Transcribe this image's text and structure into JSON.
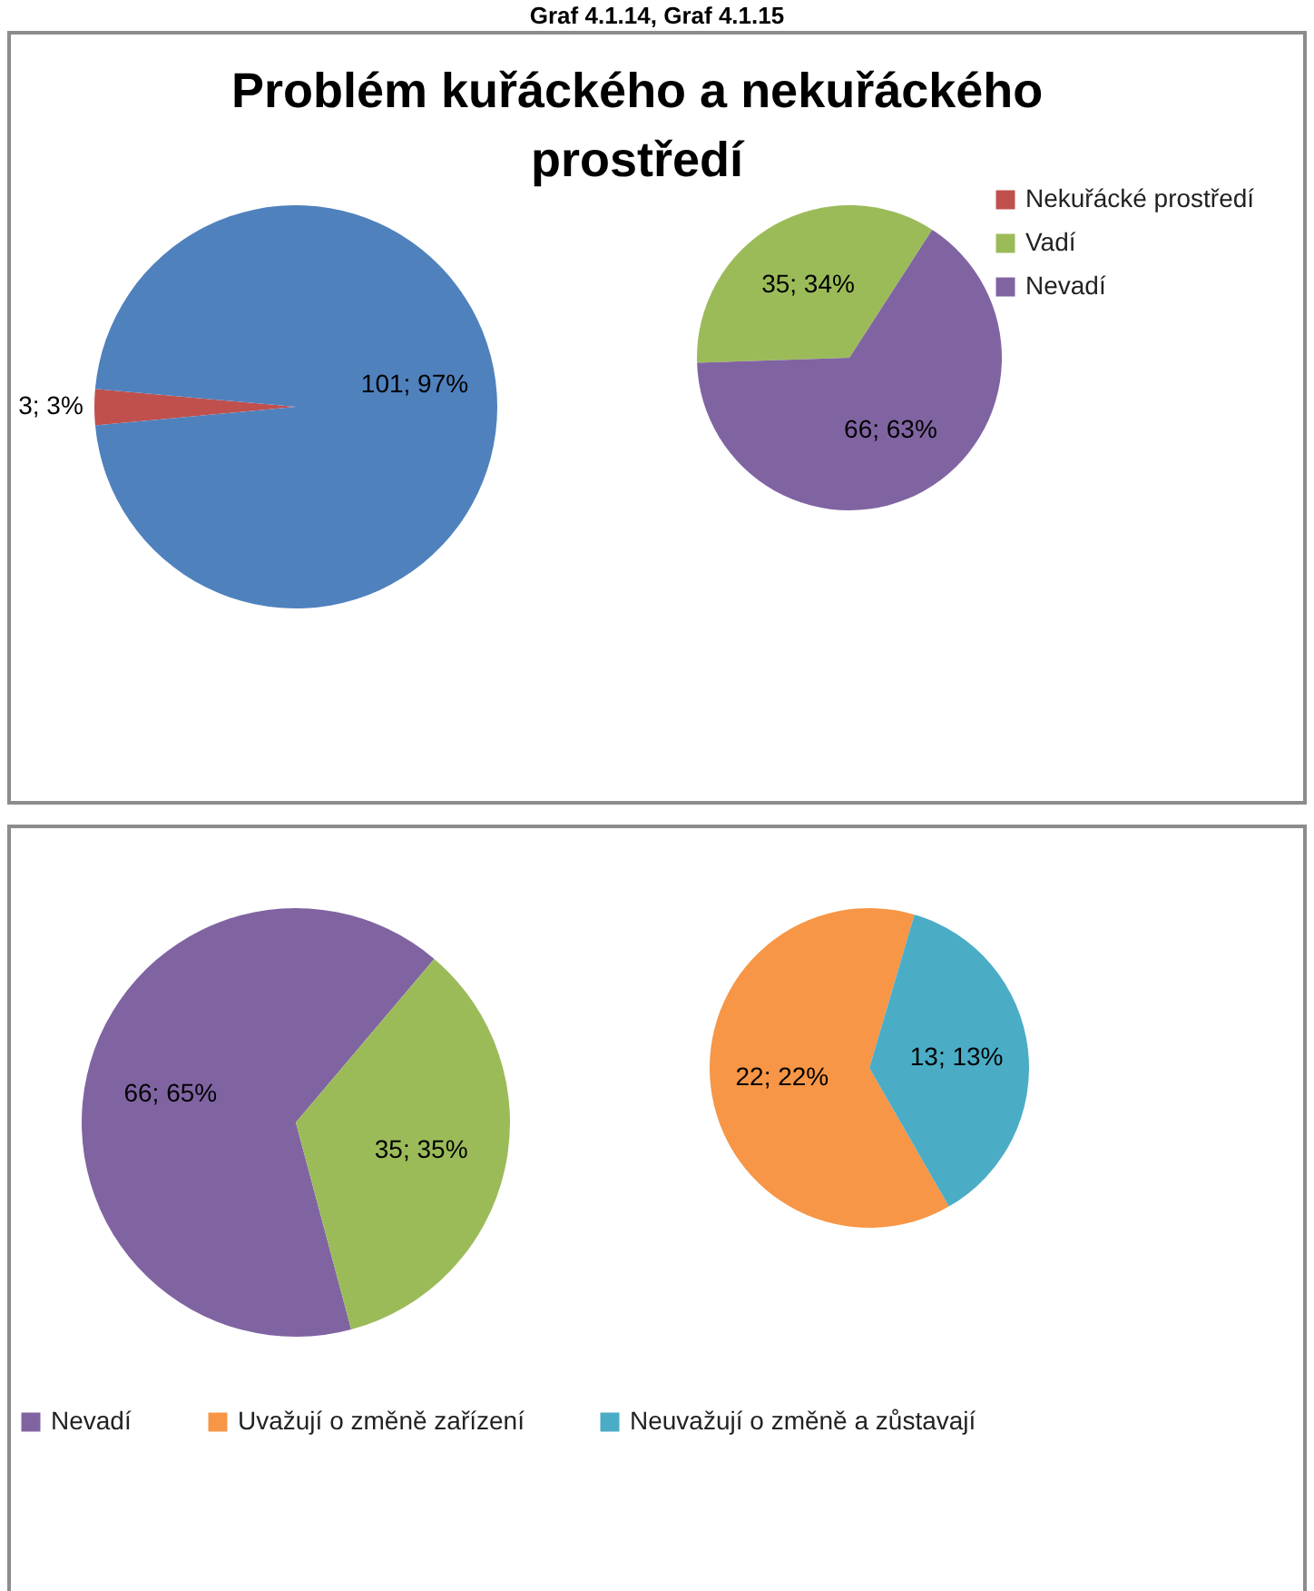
{
  "chart_data": [
    {
      "type": "pie",
      "title": "Problém kuřáckého a nekuřáckého prostředí",
      "annotations": [
        "Graf 4.1.14, Graf 4.1.15"
      ],
      "categories": [
        "Nekuřácké prostředí",
        null
      ],
      "values": [
        3,
        101
      ],
      "colors": [
        "#c0504d",
        "#4f81bd"
      ],
      "value_labels": [
        "3; 3%",
        "101; 97%"
      ],
      "legend": "top right"
    },
    {
      "type": "pie",
      "categories": [
        "Vadí",
        "Nevadí"
      ],
      "values": [
        35,
        66
      ],
      "colors": [
        "#9bbb59",
        "#8064a2"
      ],
      "value_labels": [
        "35; 34%",
        "66; 63%"
      ],
      "legend": "top right"
    },
    {
      "type": "pie",
      "categories": [
        "Nevadí",
        null
      ],
      "values": [
        66,
        35
      ],
      "colors": [
        "#8064a2",
        "#9bbb59"
      ],
      "value_labels": [
        "66; 65%",
        "35; 35%"
      ],
      "legend": "bottom"
    },
    {
      "type": "pie",
      "categories": [
        "Uvažují o změně zařízení",
        "Neuvažují o změně a zůstavají"
      ],
      "values": [
        22,
        13
      ],
      "colors": [
        "#f79646",
        "#4bacc6"
      ],
      "value_labels": [
        "22; 22%",
        "13; 13%"
      ],
      "legend": "bottom"
    }
  ]
}
